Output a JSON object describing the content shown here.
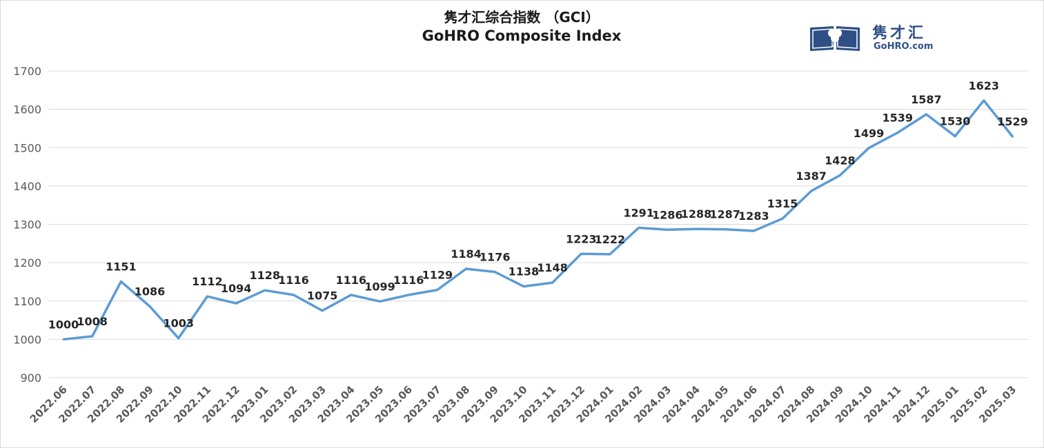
{
  "chart_data": {
    "type": "line",
    "title": "隽才汇综合指数 （GCI）",
    "subtitle": "GoHRO Composite Index",
    "xlabel": "",
    "ylabel": "",
    "ylim": [
      900,
      1700
    ],
    "yticks": [
      900,
      1000,
      1100,
      1200,
      1300,
      1400,
      1500,
      1600,
      1700
    ],
    "grid": true,
    "categories": [
      "2022.06",
      "2022.07",
      "2022.08",
      "2022.09",
      "2022.10",
      "2022.11",
      "2022.12",
      "2023.01",
      "2023.02",
      "2023.03",
      "2023.04",
      "2023.05",
      "2023.06",
      "2023.07",
      "2023.08",
      "2023.09",
      "2023.10",
      "2023.11",
      "2023.12",
      "2024.01",
      "2024.02",
      "2024.03",
      "2024.04",
      "2024.05",
      "2024.06",
      "2024.07",
      "2024.08",
      "2024.09",
      "2024.10",
      "2024.11",
      "2024.12",
      "2025.01",
      "2025.02",
      "2025.03"
    ],
    "series": [
      {
        "color": "#5b9bd5",
        "values": [
          1000,
          1008,
          1151,
          1086,
          1003,
          1112,
          1094,
          1128,
          1116,
          1075,
          1116,
          1099,
          1116,
          1129,
          1184,
          1176,
          1138,
          1148,
          1223,
          1222,
          1291,
          1286,
          1288,
          1287,
          1283,
          1315,
          1387,
          1428,
          1499,
          1539,
          1587,
          1530,
          1623,
          1529
        ]
      }
    ]
  },
  "logo": {
    "cn_text": "隽才汇",
    "en_text": "GoHRO.com",
    "icon": "book-clover-icon",
    "color": "#2f4f86"
  }
}
